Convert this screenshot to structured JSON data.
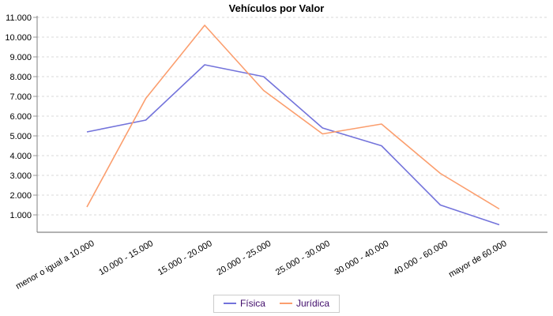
{
  "chart_data": {
    "type": "line",
    "title": "Vehículos por Valor",
    "categories": [
      "menor o igual a 10.000",
      "10.000 - 15.000",
      "15.000 - 20.000",
      "20.000 - 25.000",
      "25.000 - 30.000",
      "30.000 - 40.000",
      "40.000 - 60.000",
      "mayor de 60.000"
    ],
    "series": [
      {
        "name": "Física",
        "color": "#7373DB",
        "values": [
          5200,
          5800,
          8600,
          8000,
          5400,
          4500,
          1500,
          500
        ]
      },
      {
        "name": "Jurídica",
        "color": "#FB9E6E",
        "values": [
          1400,
          6900,
          10600,
          7300,
          5100,
          5600,
          3100,
          1300
        ]
      }
    ],
    "ylim": [
      0,
      11000
    ],
    "yticks": [
      1000,
      2000,
      3000,
      4000,
      5000,
      6000,
      7000,
      8000,
      9000,
      10000,
      11000
    ],
    "ytick_labels": [
      "1.000",
      "2.000",
      "3.000",
      "4.000",
      "5.000",
      "6.000",
      "7.000",
      "8.000",
      "9.000",
      "10.000",
      "11.000"
    ],
    "grid": "horizontal-dashed",
    "legend_position": "bottom",
    "legend_text_color": "#410D6B",
    "axis_color": "#808080",
    "gridline_color": "#D9D9D9",
    "tick_color": "#999999",
    "label_color": "#000000"
  }
}
